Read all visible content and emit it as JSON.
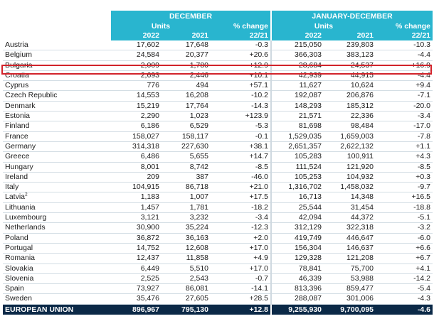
{
  "header": {
    "group_dec": "DECEMBER",
    "group_jd": "JANUARY-DECEMBER",
    "units": "Units",
    "pct_change": "% change",
    "y2022": "2022",
    "y2021": "2021",
    "ratio": "22/21"
  },
  "rows": [
    {
      "name": "Austria",
      "dec22": "17,602",
      "dec21": "17,648",
      "decpct": "-0.3",
      "jd22": "215,050",
      "jd21": "239,803",
      "jdpct": "-10.3"
    },
    {
      "name": "Belgium",
      "dec22": "24,584",
      "dec21": "20,377",
      "decpct": "+20.6",
      "jd22": "366,303",
      "jd21": "383,123",
      "jdpct": "-4.4"
    },
    {
      "name": "Bulgaria",
      "dec22": "2,009",
      "dec21": "1,780",
      "decpct": "+12.9",
      "jd22": "28,684",
      "jd21": "24,537",
      "jdpct": "+16.9"
    },
    {
      "name": "Croatia",
      "dec22": "2,693",
      "dec21": "2,446",
      "decpct": "+10.1",
      "jd22": "42,939",
      "jd21": "44,915",
      "jdpct": "-4.4"
    },
    {
      "name": "Cyprus",
      "dec22": "776",
      "dec21": "494",
      "decpct": "+57.1",
      "jd22": "11,627",
      "jd21": "10,624",
      "jdpct": "+9.4"
    },
    {
      "name": "Czech Republic",
      "dec22": "14,553",
      "dec21": "16,208",
      "decpct": "-10.2",
      "jd22": "192,087",
      "jd21": "206,876",
      "jdpct": "-7.1"
    },
    {
      "name": "Denmark",
      "dec22": "15,219",
      "dec21": "17,764",
      "decpct": "-14.3",
      "jd22": "148,293",
      "jd21": "185,312",
      "jdpct": "-20.0"
    },
    {
      "name": "Estonia",
      "dec22": "2,290",
      "dec21": "1,023",
      "decpct": "+123.9",
      "jd22": "21,571",
      "jd21": "22,336",
      "jdpct": "-3.4"
    },
    {
      "name": "Finland",
      "dec22": "6,186",
      "dec21": "6,529",
      "decpct": "-5.3",
      "jd22": "81,698",
      "jd21": "98,484",
      "jdpct": "-17.0"
    },
    {
      "name": "France",
      "dec22": "158,027",
      "dec21": "158,117",
      "decpct": "-0.1",
      "jd22": "1,529,035",
      "jd21": "1,659,003",
      "jdpct": "-7.8"
    },
    {
      "name": "Germany",
      "dec22": "314,318",
      "dec21": "227,630",
      "decpct": "+38.1",
      "jd22": "2,651,357",
      "jd21": "2,622,132",
      "jdpct": "+1.1"
    },
    {
      "name": "Greece",
      "dec22": "6,486",
      "dec21": "5,655",
      "decpct": "+14.7",
      "jd22": "105,283",
      "jd21": "100,911",
      "jdpct": "+4.3"
    },
    {
      "name": "Hungary",
      "dec22": "8,001",
      "dec21": "8,742",
      "decpct": "-8.5",
      "jd22": "111,524",
      "jd21": "121,920",
      "jdpct": "-8.5"
    },
    {
      "name": "Ireland",
      "dec22": "209",
      "dec21": "387",
      "decpct": "-46.0",
      "jd22": "105,253",
      "jd21": "104,932",
      "jdpct": "+0.3"
    },
    {
      "name": "Italy",
      "dec22": "104,915",
      "dec21": "86,718",
      "decpct": "+21.0",
      "jd22": "1,316,702",
      "jd21": "1,458,032",
      "jdpct": "-9.7"
    },
    {
      "name": "Latvia",
      "sup": "2",
      "dec22": "1,183",
      "dec21": "1,007",
      "decpct": "+17.5",
      "jd22": "16,713",
      "jd21": "14,348",
      "jdpct": "+16.5"
    },
    {
      "name": "Lithuania",
      "dec22": "1,457",
      "dec21": "1,781",
      "decpct": "-18.2",
      "jd22": "25,544",
      "jd21": "31,454",
      "jdpct": "-18.8"
    },
    {
      "name": "Luxembourg",
      "dec22": "3,121",
      "dec21": "3,232",
      "decpct": "-3.4",
      "jd22": "42,094",
      "jd21": "44,372",
      "jdpct": "-5.1"
    },
    {
      "name": "Netherlands",
      "dec22": "30,900",
      "dec21": "35,224",
      "decpct": "-12.3",
      "jd22": "312,129",
      "jd21": "322,318",
      "jdpct": "-3.2"
    },
    {
      "name": "Poland",
      "dec22": "36,872",
      "dec21": "36,163",
      "decpct": "+2.0",
      "jd22": "419,749",
      "jd21": "446,647",
      "jdpct": "-6.0"
    },
    {
      "name": "Portugal",
      "dec22": "14,752",
      "dec21": "12,608",
      "decpct": "+17.0",
      "jd22": "156,304",
      "jd21": "146,637",
      "jdpct": "+6.6"
    },
    {
      "name": "Romania",
      "dec22": "12,437",
      "dec21": "11,858",
      "decpct": "+4.9",
      "jd22": "129,328",
      "jd21": "121,208",
      "jdpct": "+6.7"
    },
    {
      "name": "Slovakia",
      "dec22": "6,449",
      "dec21": "5,510",
      "decpct": "+17.0",
      "jd22": "78,841",
      "jd21": "75,700",
      "jdpct": "+4.1"
    },
    {
      "name": "Slovenia",
      "dec22": "2,525",
      "dec21": "2,543",
      "decpct": "-0.7",
      "jd22": "46,339",
      "jd21": "53,988",
      "jdpct": "-14.2"
    },
    {
      "name": "Spain",
      "dec22": "73,927",
      "dec21": "86,081",
      "decpct": "-14.1",
      "jd22": "813,396",
      "jd21": "859,477",
      "jdpct": "-5.4"
    },
    {
      "name": "Sweden",
      "dec22": "35,476",
      "dec21": "27,605",
      "decpct": "+28.5",
      "jd22": "288,087",
      "jd21": "301,006",
      "jdpct": "-4.3"
    }
  ],
  "total": {
    "name": "EUROPEAN UNION",
    "dec22": "896,967",
    "dec21": "795,130",
    "decpct": "+12.8",
    "jd22": "9,255,930",
    "jd21": "9,700,095",
    "jdpct": "-4.6"
  },
  "highlight": {
    "row_name": "Bulgaria",
    "color": "#d2232a"
  },
  "colors": {
    "header_bg": "#29b5cf",
    "total_bg": "#0b2947",
    "highlight_border": "#d2232a"
  }
}
